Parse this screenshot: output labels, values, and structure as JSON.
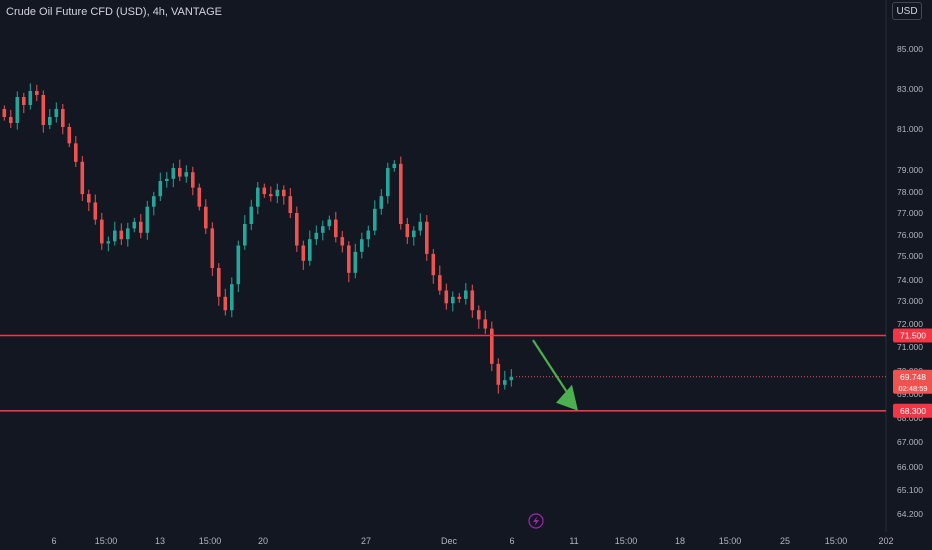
{
  "header": {
    "title": "Crude Oil Future CFD (USD), 4h, VANTAGE",
    "currency_button": "USD"
  },
  "colors": {
    "background": "#131722",
    "up": "#26a69a",
    "down": "#ef5350",
    "level_line": "#f23645",
    "arrow": "#4caf50",
    "event_icon": "#9c27b0"
  },
  "event_icon": "lightning-icon",
  "chart_data": {
    "type": "candlestick",
    "title": "Crude Oil Future CFD (USD), 4h, VANTAGE",
    "price_ticks": [
      {
        "value": 85,
        "label": "85.000"
      },
      {
        "value": 83,
        "label": "83.000"
      },
      {
        "value": 81,
        "label": "81.000"
      },
      {
        "value": 79,
        "label": "79.000"
      },
      {
        "value": 78,
        "label": "78.000"
      },
      {
        "value": 77,
        "label": "77.000"
      },
      {
        "value": 76,
        "label": "76.000"
      },
      {
        "value": 75,
        "label": "75.000"
      },
      {
        "value": 74,
        "label": "74.000"
      },
      {
        "value": 73,
        "label": "73.000"
      },
      {
        "value": 72,
        "label": "72.000"
      },
      {
        "value": 71,
        "label": "71.000"
      },
      {
        "value": 70,
        "label": "70.000"
      },
      {
        "value": 69,
        "label": "69.000"
      },
      {
        "value": 68,
        "label": "68.000"
      },
      {
        "value": 67,
        "label": "67.000"
      },
      {
        "value": 66,
        "label": "66.000"
      },
      {
        "value": 65.1,
        "label": "65.100"
      },
      {
        "value": 64.2,
        "label": "64.200"
      }
    ],
    "time_labels": [
      "6",
      "15:00",
      "13",
      "15:00",
      "20",
      "27",
      "Dec",
      "6",
      "11",
      "15:00",
      "18",
      "15:00",
      "25",
      "15:00",
      "202"
    ],
    "levels": [
      {
        "value": 71.5,
        "label": "71.500"
      },
      {
        "value": 68.3,
        "label": "68.300"
      }
    ],
    "current_price": {
      "value": 69.748,
      "label": "69.748",
      "countdown": "02:48:59"
    },
    "forecast_arrow": {
      "from": 71.3,
      "to": 68.3,
      "direction": "down"
    },
    "closes": [
      81.6,
      81.3,
      82.6,
      82.2,
      82.9,
      82.7,
      81.2,
      81.6,
      82.0,
      81.1,
      80.3,
      79.4,
      77.9,
      77.5,
      76.7,
      75.6,
      75.7,
      76.2,
      75.8,
      76.3,
      76.6,
      76.1,
      77.3,
      77.8,
      78.5,
      78.6,
      79.1,
      78.7,
      78.9,
      78.2,
      77.3,
      76.3,
      74.5,
      73.2,
      72.6,
      73.8,
      75.5,
      76.5,
      77.3,
      78.2,
      77.9,
      77.8,
      78.1,
      77.8,
      77.0,
      75.5,
      74.8,
      75.8,
      76.1,
      76.4,
      76.7,
      75.9,
      75.5,
      74.3,
      75.2,
      75.8,
      76.2,
      77.2,
      77.8,
      79.1,
      79.3,
      76.5,
      75.9,
      76.2,
      76.6,
      75.1,
      74.2,
      73.5,
      72.9,
      73.2,
      73.1,
      73.5,
      72.6,
      72.2,
      71.8,
      70.3,
      69.4,
      69.6,
      69.75
    ]
  }
}
